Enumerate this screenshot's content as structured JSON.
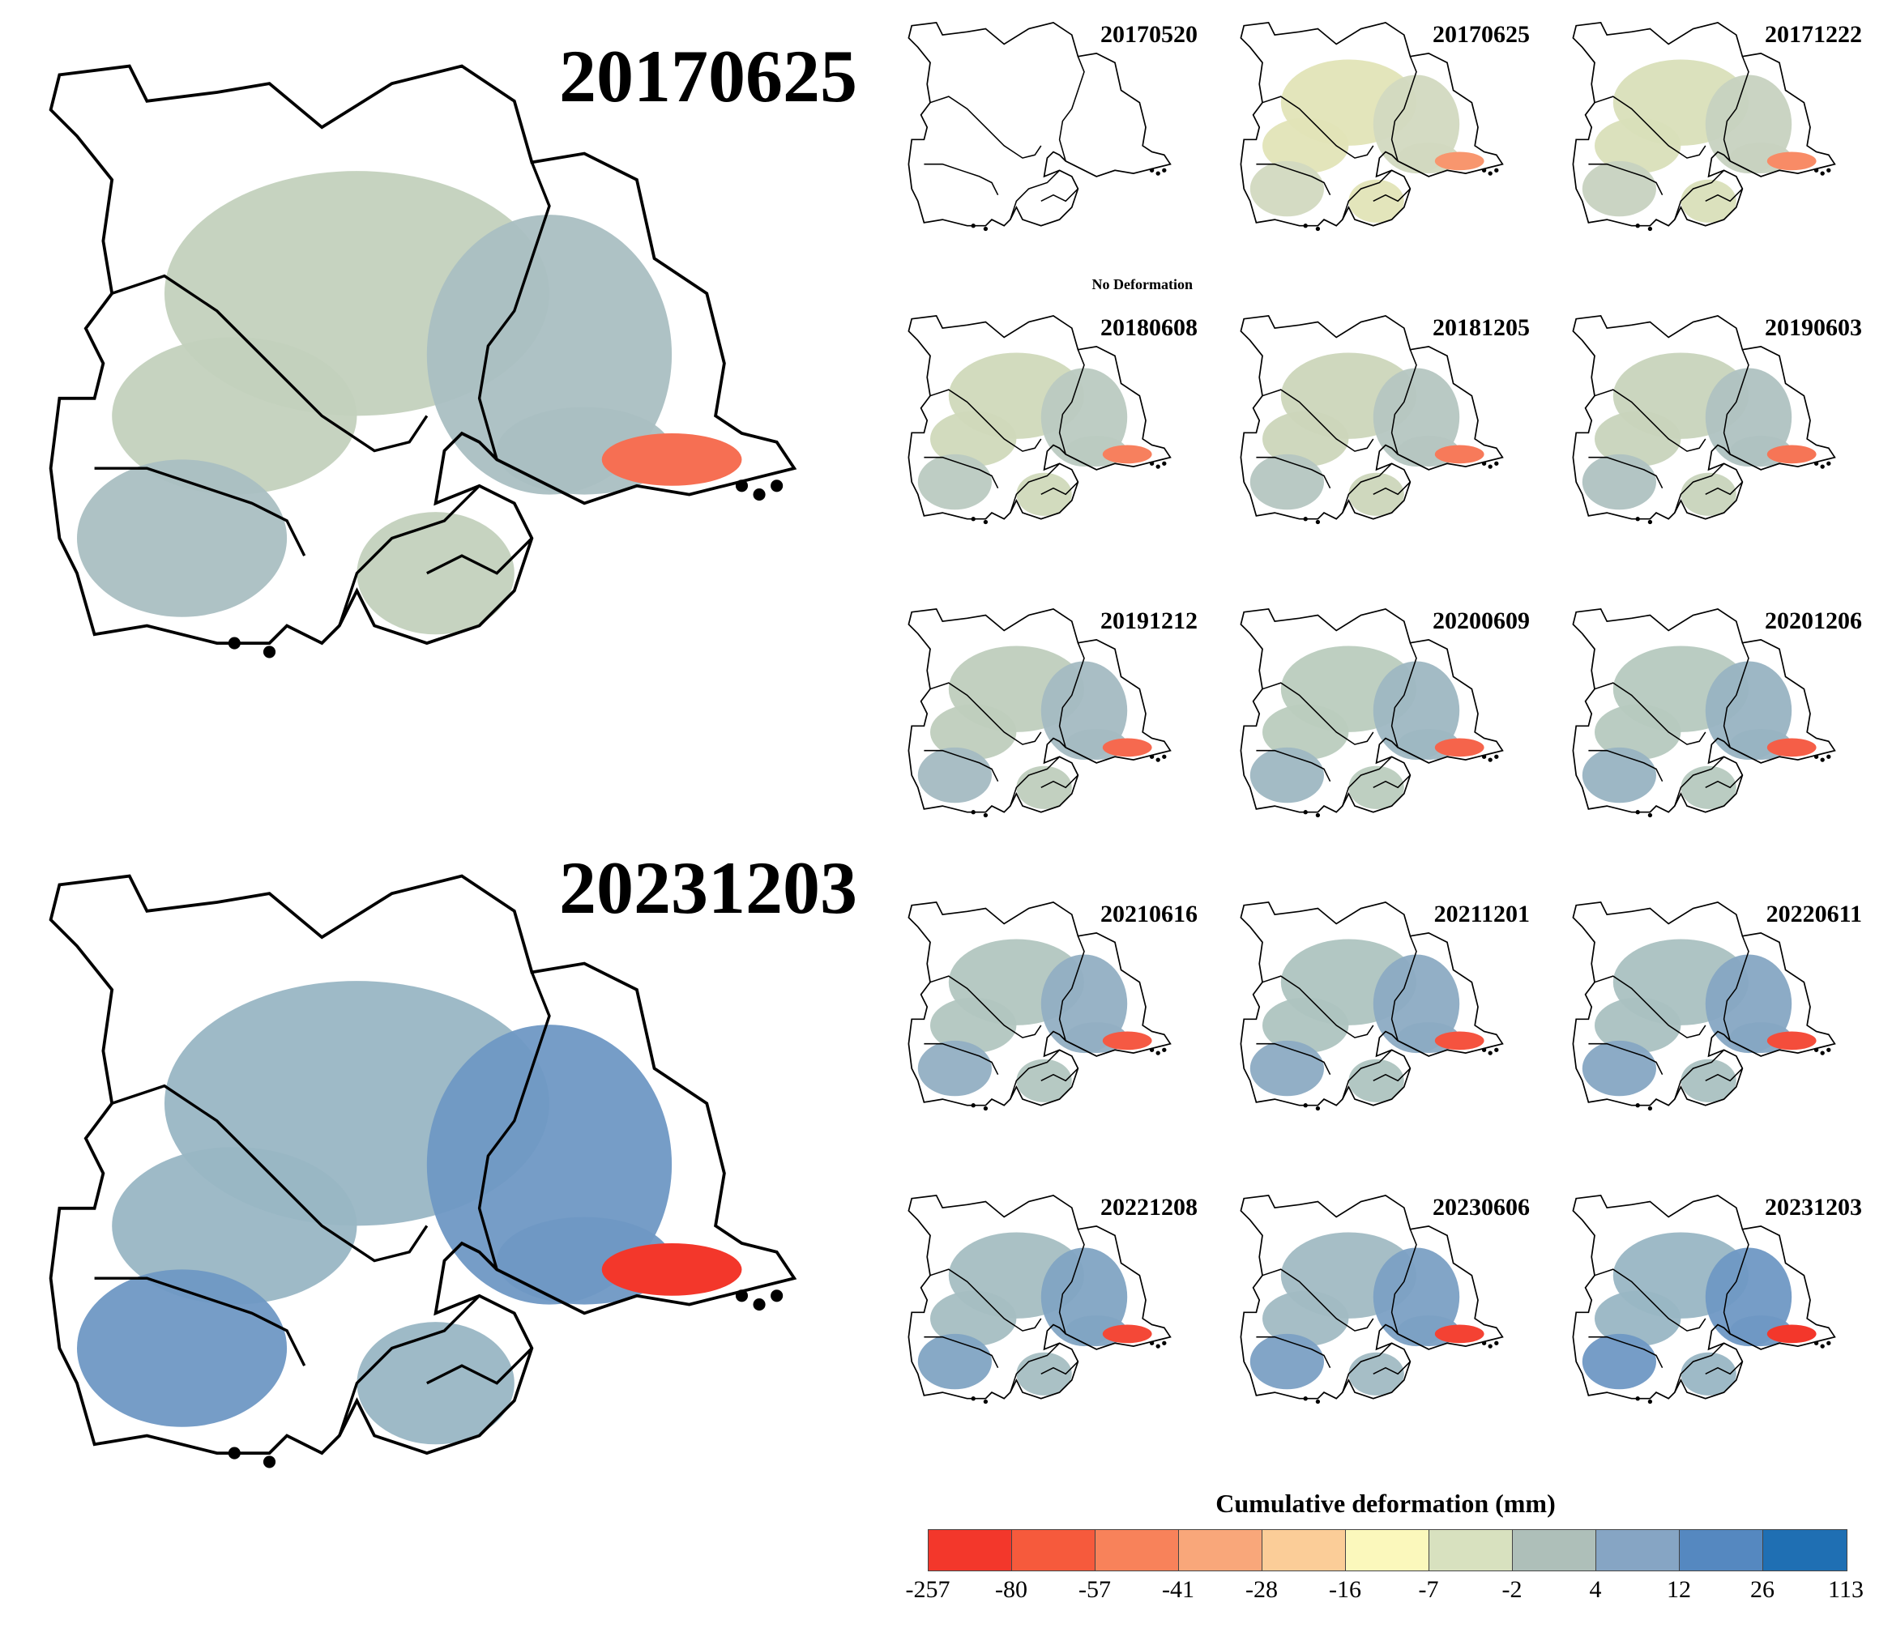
{
  "large_maps": [
    {
      "date": "20170625"
    },
    {
      "date": "20231203"
    }
  ],
  "panels": [
    {
      "date": "20170520",
      "note": "No Deformation",
      "level": 0.0
    },
    {
      "date": "20170625",
      "note": "",
      "level": 0.15
    },
    {
      "date": "20171222",
      "note": "",
      "level": 0.25
    },
    {
      "date": "20180608",
      "note": "",
      "level": 0.35
    },
    {
      "date": "20181205",
      "note": "",
      "level": 0.4
    },
    {
      "date": "20190603",
      "note": "",
      "level": 0.45
    },
    {
      "date": "20191212",
      "note": "",
      "level": 0.55
    },
    {
      "date": "20200609",
      "note": "",
      "level": 0.6
    },
    {
      "date": "20201206",
      "note": "",
      "level": 0.65
    },
    {
      "date": "20210616",
      "note": "",
      "level": 0.7
    },
    {
      "date": "20211201",
      "note": "",
      "level": 0.75
    },
    {
      "date": "20220611",
      "note": "",
      "level": 0.8
    },
    {
      "date": "20221208",
      "note": "",
      "level": 0.85
    },
    {
      "date": "20230606",
      "note": "",
      "level": 0.9
    },
    {
      "date": "20231203",
      "note": "",
      "level": 1.0
    }
  ],
  "legend": {
    "title": "Cumulative deformation (mm)",
    "ticks": [
      "-257",
      "-80",
      "-57",
      "-41",
      "-28",
      "-16",
      "-7",
      "-2",
      "4",
      "12",
      "26",
      "113"
    ],
    "colors": [
      "#f3372b",
      "#f65a3c",
      "#f8825a",
      "#f9a77a",
      "#fbcd98",
      "#fbf8bc",
      "#d8e1bf",
      "#aebfb9",
      "#86a5c4",
      "#5588c0",
      "#1f6fb3"
    ]
  }
}
